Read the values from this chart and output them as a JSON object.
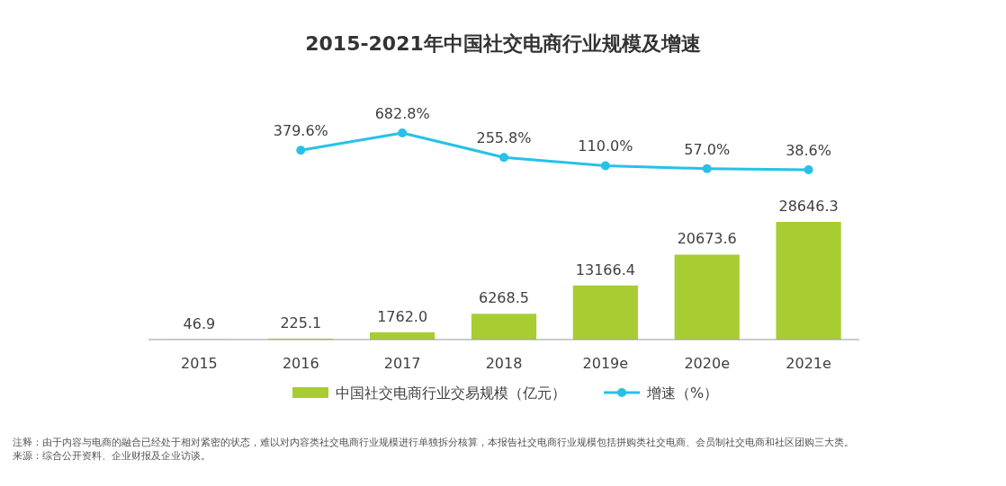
{
  "chart_data": [
    {
      "type": "line",
      "title": "2015-2021年中国社交电商行业规模及增速",
      "categories": [
        null,
        null,
        null,
        null,
        null,
        null,
        null
      ],
      "series": [
        {
          "name": "增速（%）",
          "color": "#27c1e8",
          "marker": "circle",
          "value_labels": [
            null,
            "379.6%",
            "682.8%",
            "255.8%",
            "110.0%",
            "57.0%",
            "38.6%"
          ],
          "values": [
            null,
            379.6,
            682.8,
            255.8,
            110.0,
            57.0,
            38.6
          ]
        }
      ],
      "legend": "bottom"
    },
    {
      "type": "bar",
      "categories": [
        "2015",
        "2016",
        "2017",
        "2018",
        "2019e",
        "2020e",
        "2021e"
      ],
      "tick_labels": "x",
      "series": [
        {
          "name": "中国社交电商行业交易规模（亿元）",
          "color": "#a8cd32",
          "values": [
            46.9,
            225.1,
            1762.0,
            6268.5,
            13166.4,
            20673.6,
            28646.3
          ],
          "value_labels": [
            "46.9",
            "225.1",
            "1762.0",
            "6268.5",
            "13166.4",
            "20673.6",
            "28646.3"
          ]
        }
      ],
      "legend": "bottom",
      "annotations": [
        "注释：由于内容与电商的融合已经处于相对紧密的状态，难以对内容类社交电商行业规模进行单独拆分核算，本报告社交电商行业规模包括拼购类社交电商、会员制社交电商和社区团购三大类。",
        "来源：综合公开资料、企业财报及企业访谈。"
      ]
    }
  ]
}
